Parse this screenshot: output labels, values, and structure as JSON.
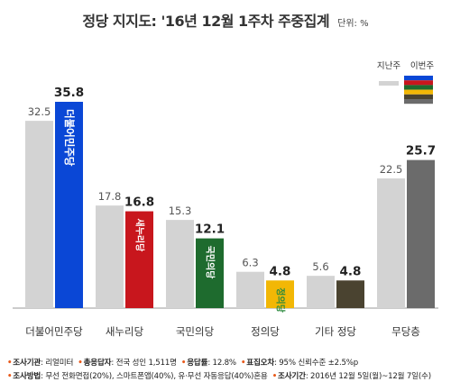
{
  "title": "정당 지지도: '16년 12월 1주차 주중집계",
  "unit_label": "단위: %",
  "legend": {
    "prev_label": "지난주",
    "curr_label": "이번주"
  },
  "chart_data": {
    "type": "bar",
    "title": "정당 지지도: '16년 12월 1주차 주중집계",
    "unit": "%",
    "categories": [
      "더불어민주당",
      "새누리당",
      "국민의당",
      "정의당",
      "기타 정당",
      "무당층"
    ],
    "series": [
      {
        "name": "지난주",
        "values": [
          32.5,
          17.8,
          15.3,
          6.3,
          5.6,
          22.5
        ],
        "color": "#d3d3d3"
      },
      {
        "name": "이번주",
        "values": [
          35.8,
          16.8,
          12.1,
          4.8,
          4.8,
          25.7
        ]
      }
    ],
    "current_colors": [
      "#0a47d6",
      "#c8161d",
      "#1e6b2e",
      "#f2b705",
      "#4a4330",
      "#6b6b6b"
    ],
    "bar_logos": [
      "더불어민주당",
      "새누리당",
      "국민의당",
      "정의당",
      "",
      ""
    ],
    "ylim": [
      0,
      40
    ],
    "grid": false,
    "legend_position": "top-right"
  },
  "footer": {
    "line1": [
      {
        "label": "조사기관",
        "value": ": 리얼미터"
      },
      {
        "label": "총응답자",
        "value": ": 전국 성인 1,511명"
      },
      {
        "label": "응답률",
        "value": ": 12.8%"
      },
      {
        "label": "표집오차",
        "value": ": 95% 신뢰수준 ±2.5%p"
      }
    ],
    "line2": [
      {
        "label": "조사방법",
        "value": ": 무선 전화면접(20%), 스마트폰앱(40%), 유·무선 자동응답(40%)혼용"
      },
      {
        "label": "조사기간",
        "value": ": 2016년 12월 5일(월)~12월 7일(수)"
      }
    ]
  }
}
